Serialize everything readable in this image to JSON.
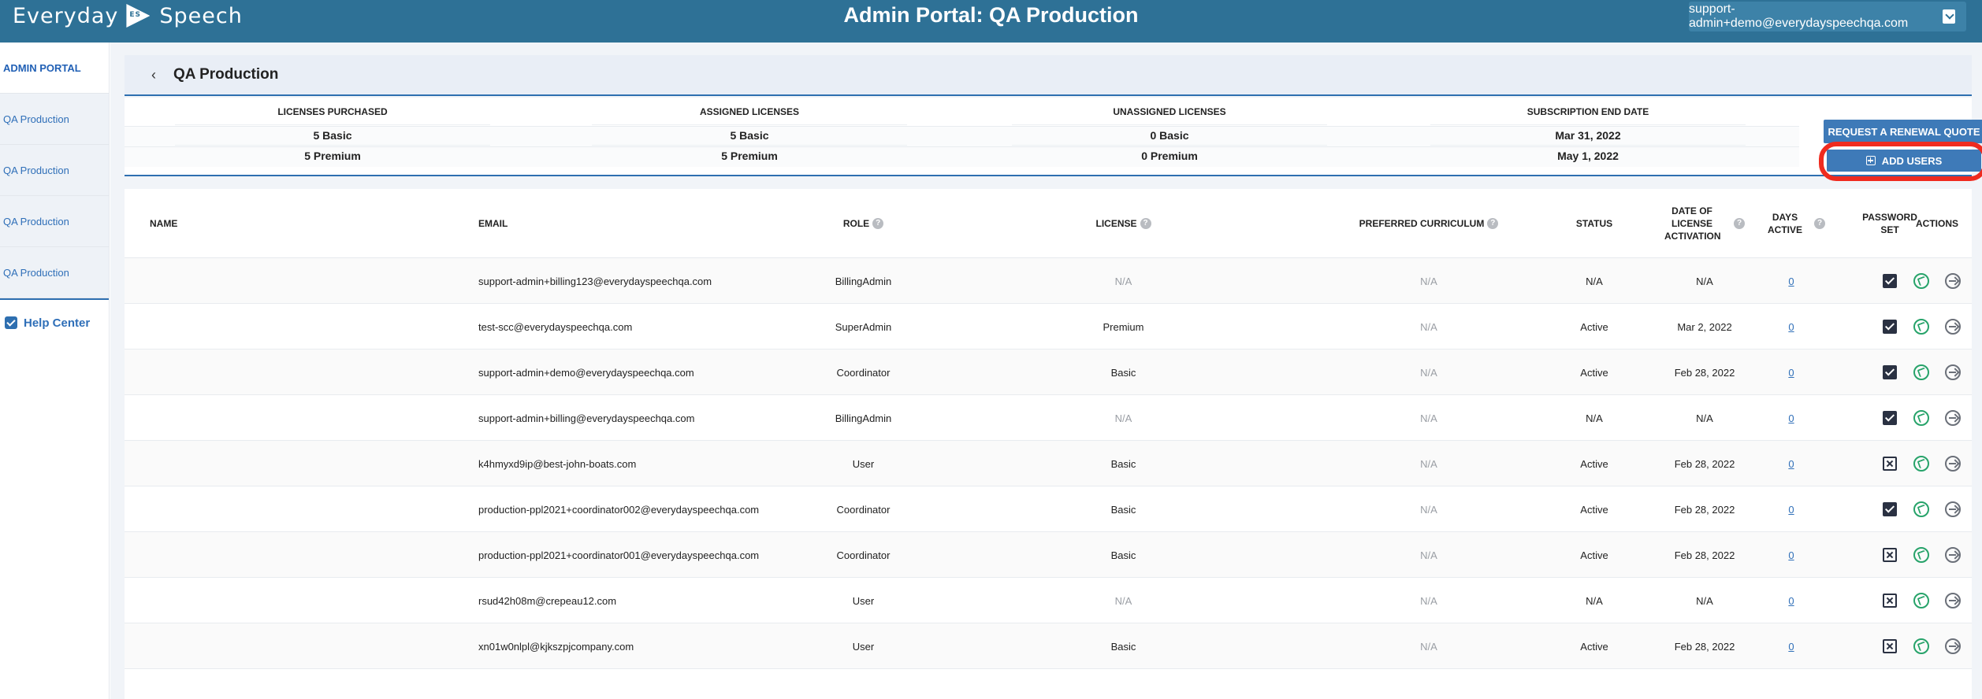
{
  "header": {
    "logo_left": "Everyday",
    "logo_badge": "ES",
    "logo_right": "Speech",
    "title": "Admin Portal: QA Production",
    "user_email": "support-admin+demo@everydayspeechqa.com"
  },
  "sidebar": {
    "items": [
      {
        "label": "ADMIN PORTAL",
        "active": true
      },
      {
        "label": "QA Production"
      },
      {
        "label": "QA Production"
      },
      {
        "label": "QA Production"
      },
      {
        "label": "QA Production"
      }
    ],
    "help": "Help Center"
  },
  "page": {
    "back_symbol": "‹",
    "title": "QA Production"
  },
  "summary": {
    "headers": [
      "LICENSES PURCHASED",
      "ASSIGNED LICENSES",
      "UNASSIGNED LICENSES",
      "SUBSCRIPTION END DATE"
    ],
    "row1": [
      "5 Basic",
      "5 Basic",
      "0 Basic",
      "Mar 31, 2022"
    ],
    "row2": [
      "5 Premium",
      "5 Premium",
      "0 Premium",
      "May 1, 2022"
    ],
    "renew_button": "REQUEST A RENEWAL QUOTE",
    "add_users_button": "ADD USERS"
  },
  "table": {
    "headers": {
      "name": "NAME",
      "email": "EMAIL",
      "role": "ROLE",
      "license": "LICENSE",
      "curriculum": "PREFERRED CURRICULUM",
      "status": "STATUS",
      "activation": "DATE OF LICENSE ACTIVATION",
      "days": "DAYS ACTIVE",
      "password": "PASSWORD SET",
      "actions": "ACTIONS",
      "help_mark": "?"
    },
    "rows": [
      {
        "name": "",
        "email": "support-admin+billing123@everydayspeechqa.com",
        "role": "BillingAdmin",
        "license": "N/A",
        "curriculum": "N/A",
        "status": "N/A",
        "activation": "N/A",
        "days": "0",
        "password_set": true
      },
      {
        "name": "",
        "email": "test-scc@everydayspeechqa.com",
        "role": "SuperAdmin",
        "license": "Premium",
        "curriculum": "N/A",
        "status": "Active",
        "activation": "Mar 2, 2022",
        "days": "0",
        "password_set": true
      },
      {
        "name": "",
        "email": "support-admin+demo@everydayspeechqa.com",
        "role": "Coordinator",
        "license": "Basic",
        "curriculum": "N/A",
        "status": "Active",
        "activation": "Feb 28, 2022",
        "days": "0",
        "password_set": true
      },
      {
        "name": "",
        "email": "support-admin+billing@everydayspeechqa.com",
        "role": "BillingAdmin",
        "license": "N/A",
        "curriculum": "N/A",
        "status": "N/A",
        "activation": "N/A",
        "days": "0",
        "password_set": true
      },
      {
        "name": "",
        "email": "k4hmyxd9ip@best-john-boats.com",
        "role": "User",
        "license": "Basic",
        "curriculum": "N/A",
        "status": "Active",
        "activation": "Feb 28, 2022",
        "days": "0",
        "password_set": false
      },
      {
        "name": "",
        "email": "production-ppl2021+coordinator002@everydayspeechqa.com",
        "role": "Coordinator",
        "license": "Basic",
        "curriculum": "N/A",
        "status": "Active",
        "activation": "Feb 28, 2022",
        "days": "0",
        "password_set": true
      },
      {
        "name": "",
        "email": "production-ppl2021+coordinator001@everydayspeechqa.com",
        "role": "Coordinator",
        "license": "Basic",
        "curriculum": "N/A",
        "status": "Active",
        "activation": "Feb 28, 2022",
        "days": "0",
        "password_set": false
      },
      {
        "name": "",
        "email": "rsud42h08m@crepeau12.com",
        "role": "User",
        "license": "N/A",
        "curriculum": "N/A",
        "status": "N/A",
        "activation": "N/A",
        "days": "0",
        "password_set": false
      },
      {
        "name": "",
        "email": "xn01w0nlpl@kjkszpjcompany.com",
        "role": "User",
        "license": "Basic",
        "curriculum": "N/A",
        "status": "Active",
        "activation": "Feb 28, 2022",
        "days": "0",
        "password_set": false
      }
    ]
  }
}
